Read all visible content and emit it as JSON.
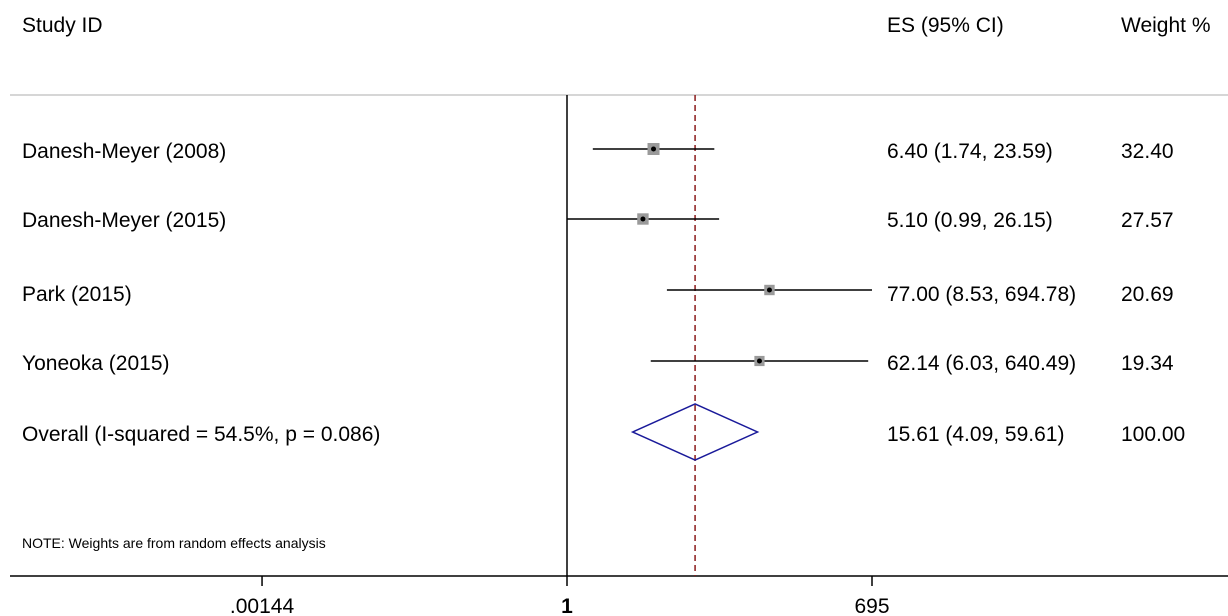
{
  "chart_data": {
    "type": "forest",
    "headers": {
      "study": "Study  ID",
      "es": "ES (95% CI)",
      "weight": "Weight %"
    },
    "studies": [
      {
        "label": "Danesh-Meyer (2008)",
        "es": 6.4,
        "lower": 1.74,
        "upper": 23.59,
        "es_text": "6.40 (1.74, 23.59)",
        "weight": 32.4,
        "weight_text": "32.40"
      },
      {
        "label": "Danesh-Meyer (2015)",
        "es": 5.1,
        "lower": 0.99,
        "upper": 26.15,
        "es_text": "5.10 (0.99, 26.15)",
        "weight": 27.57,
        "weight_text": "27.57"
      },
      {
        "label": "Park (2015)",
        "es": 77.0,
        "lower": 8.53,
        "upper": 694.78,
        "es_text": "77.00 (8.53, 694.78)",
        "weight": 20.69,
        "weight_text": "20.69"
      },
      {
        "label": "Yoneoka (2015)",
        "es": 62.14,
        "lower": 6.03,
        "upper": 640.49,
        "es_text": "62.14 (6.03, 640.49)",
        "weight": 19.34,
        "weight_text": "19.34"
      }
    ],
    "overall": {
      "label": "Overall  (I-squared = 54.5%, p = 0.086)",
      "es": 15.61,
      "lower": 4.09,
      "upper": 59.61,
      "es_text": "15.61 (4.09, 59.61)",
      "weight_text": "100.00"
    },
    "note": "NOTE: Weights are from random effects analysis",
    "x_axis": {
      "scale": "log",
      "ticks": [
        {
          "value": 0.00144,
          "label": ".00144"
        },
        {
          "value": 1,
          "label": "1"
        },
        {
          "value": 695,
          "label": "695"
        }
      ],
      "null_line": 1
    },
    "colors": {
      "text": "#000000",
      "ci_line": "#000000",
      "point": "#000000",
      "box": "#9a9a9a",
      "diamond": "#1a1a9a",
      "overall_line": "#8b1a1a",
      "header_rule": "#c8c8c8"
    }
  }
}
